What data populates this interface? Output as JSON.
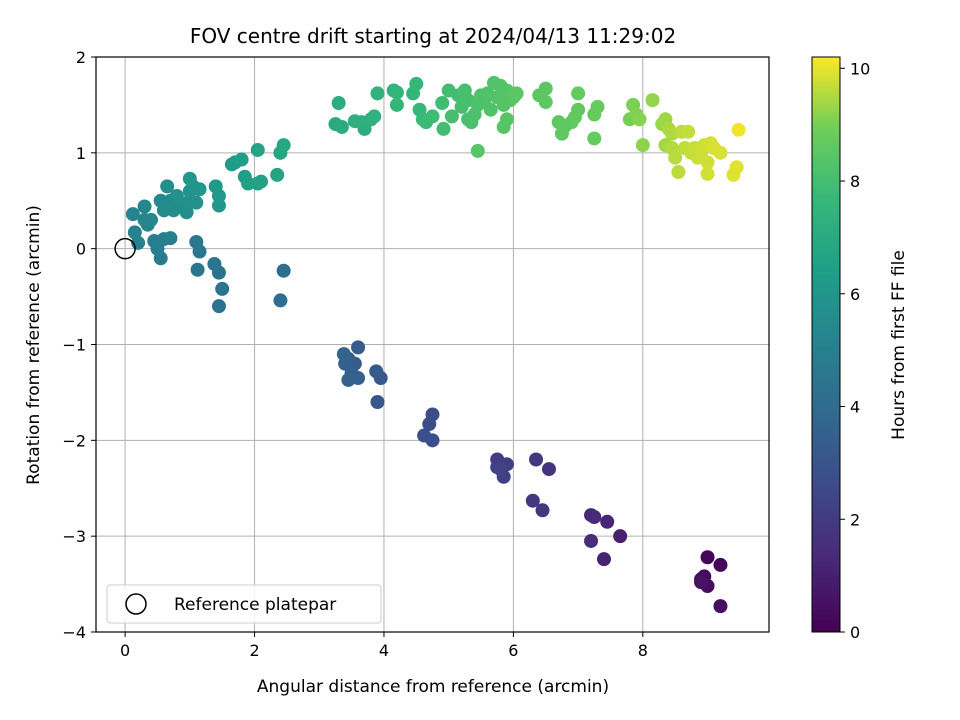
{
  "chart_data": {
    "type": "scatter",
    "title": "FOV centre drift starting at 2024/04/13 11:29:02",
    "xlabel": "Angular distance from reference (arcmin)",
    "ylabel": "Rotation from reference (arcmin)",
    "xlim": [
      -0.45,
      9.95
    ],
    "ylim": [
      -4,
      2
    ],
    "xticks": [
      0,
      2,
      4,
      6,
      8
    ],
    "yticks": [
      -4,
      -3,
      -2,
      -1,
      0,
      1,
      2
    ],
    "xtick_labels": [
      "0",
      "2",
      "4",
      "6",
      "8"
    ],
    "ytick_labels": [
      "−4",
      "−3",
      "−2",
      "−1",
      "0",
      "1",
      "2"
    ],
    "grid": true,
    "colormap": "viridis",
    "colorbar": {
      "label": "Hours from first FF file",
      "range": [
        0,
        10.2
      ],
      "ticks": [
        0,
        2,
        4,
        6,
        8,
        10
      ],
      "tick_labels": [
        "0",
        "2",
        "4",
        "6",
        "8",
        "10"
      ]
    },
    "reference": {
      "x": 0,
      "y": 0,
      "label": "Reference platepar"
    },
    "legend_position": "lower-left",
    "points": [
      {
        "x": 9.0,
        "y": -3.22,
        "h": 0.1
      },
      {
        "x": 9.2,
        "y": -3.3,
        "h": 0.2
      },
      {
        "x": 8.9,
        "y": -3.45,
        "h": 0.3
      },
      {
        "x": 8.95,
        "y": -3.42,
        "h": 0.35
      },
      {
        "x": 9.0,
        "y": -3.52,
        "h": 0.4
      },
      {
        "x": 9.2,
        "y": -3.73,
        "h": 0.5
      },
      {
        "x": 8.9,
        "y": -3.48,
        "h": 0.6
      },
      {
        "x": 7.65,
        "y": -3.0,
        "h": 1.0
      },
      {
        "x": 7.4,
        "y": -3.24,
        "h": 1.1
      },
      {
        "x": 7.45,
        "y": -2.85,
        "h": 1.2
      },
      {
        "x": 7.2,
        "y": -2.78,
        "h": 1.3
      },
      {
        "x": 7.25,
        "y": -2.8,
        "h": 1.4
      },
      {
        "x": 7.2,
        "y": -3.05,
        "h": 1.5
      },
      {
        "x": 6.55,
        "y": -2.3,
        "h": 1.7
      },
      {
        "x": 6.35,
        "y": -2.2,
        "h": 1.8
      },
      {
        "x": 6.45,
        "y": -2.73,
        "h": 1.85
      },
      {
        "x": 6.3,
        "y": -2.63,
        "h": 1.9
      },
      {
        "x": 5.75,
        "y": -2.2,
        "h": 2.1
      },
      {
        "x": 5.9,
        "y": -2.25,
        "h": 2.15
      },
      {
        "x": 5.85,
        "y": -2.38,
        "h": 2.2
      },
      {
        "x": 5.75,
        "y": -2.28,
        "h": 2.25
      },
      {
        "x": 5.8,
        "y": -2.3,
        "h": 2.3
      },
      {
        "x": 4.75,
        "y": -1.73,
        "h": 2.7
      },
      {
        "x": 4.7,
        "y": -1.83,
        "h": 2.75
      },
      {
        "x": 4.75,
        "y": -2.0,
        "h": 2.8
      },
      {
        "x": 4.62,
        "y": -1.95,
        "h": 2.85
      },
      {
        "x": 3.9,
        "y": -1.6,
        "h": 3.1
      },
      {
        "x": 3.95,
        "y": -1.35,
        "h": 3.2
      },
      {
        "x": 3.88,
        "y": -1.28,
        "h": 3.25
      },
      {
        "x": 3.6,
        "y": -1.03,
        "h": 3.3
      },
      {
        "x": 3.55,
        "y": -1.2,
        "h": 3.35
      },
      {
        "x": 3.45,
        "y": -1.15,
        "h": 3.4
      },
      {
        "x": 3.4,
        "y": -1.2,
        "h": 3.45
      },
      {
        "x": 3.5,
        "y": -1.3,
        "h": 3.5
      },
      {
        "x": 3.6,
        "y": -1.35,
        "h": 3.55
      },
      {
        "x": 3.45,
        "y": -1.37,
        "h": 3.6
      },
      {
        "x": 3.38,
        "y": -1.1,
        "h": 3.65
      },
      {
        "x": 2.45,
        "y": -0.23,
        "h": 4.0
      },
      {
        "x": 2.4,
        "y": -0.54,
        "h": 4.1
      },
      {
        "x": 1.45,
        "y": -0.6,
        "h": 4.3
      },
      {
        "x": 1.5,
        "y": -0.42,
        "h": 4.35
      },
      {
        "x": 1.45,
        "y": -0.25,
        "h": 4.4
      },
      {
        "x": 1.38,
        "y": -0.16,
        "h": 4.45
      },
      {
        "x": 1.12,
        "y": -0.22,
        "h": 4.5
      },
      {
        "x": 1.15,
        "y": -0.03,
        "h": 4.55
      },
      {
        "x": 1.1,
        "y": 0.07,
        "h": 4.6
      },
      {
        "x": 0.55,
        "y": -0.1,
        "h": 4.8
      },
      {
        "x": 0.5,
        "y": 0.0,
        "h": 4.85
      },
      {
        "x": 0.45,
        "y": 0.08,
        "h": 4.9
      },
      {
        "x": 0.6,
        "y": 0.1,
        "h": 4.95
      },
      {
        "x": 0.7,
        "y": 0.11,
        "h": 5.0
      },
      {
        "x": 0.2,
        "y": 0.06,
        "h": 5.05
      },
      {
        "x": 0.15,
        "y": 0.17,
        "h": 5.1
      },
      {
        "x": 0.35,
        "y": 0.25,
        "h": 5.15
      },
      {
        "x": 0.12,
        "y": 0.36,
        "h": 5.2
      },
      {
        "x": 0.3,
        "y": 0.3,
        "h": 5.25
      },
      {
        "x": 0.4,
        "y": 0.3,
        "h": 5.3
      },
      {
        "x": 0.3,
        "y": 0.44,
        "h": 5.35
      },
      {
        "x": 0.55,
        "y": 0.5,
        "h": 5.4
      },
      {
        "x": 0.6,
        "y": 0.4,
        "h": 5.45
      },
      {
        "x": 0.7,
        "y": 0.5,
        "h": 5.5
      },
      {
        "x": 0.75,
        "y": 0.4,
        "h": 5.55
      },
      {
        "x": 0.85,
        "y": 0.45,
        "h": 5.6
      },
      {
        "x": 0.95,
        "y": 0.38,
        "h": 5.65
      },
      {
        "x": 0.65,
        "y": 0.65,
        "h": 5.7
      },
      {
        "x": 0.8,
        "y": 0.55,
        "h": 5.75
      },
      {
        "x": 1.0,
        "y": 0.5,
        "h": 5.8
      },
      {
        "x": 1.1,
        "y": 0.48,
        "h": 5.85
      },
      {
        "x": 1.0,
        "y": 0.6,
        "h": 5.9
      },
      {
        "x": 1.05,
        "y": 0.65,
        "h": 5.95
      },
      {
        "x": 1.15,
        "y": 0.62,
        "h": 6.0
      },
      {
        "x": 1.0,
        "y": 0.73,
        "h": 6.05
      },
      {
        "x": 1.45,
        "y": 0.45,
        "h": 6.1
      },
      {
        "x": 1.4,
        "y": 0.65,
        "h": 6.15
      },
      {
        "x": 1.45,
        "y": 0.55,
        "h": 6.2
      },
      {
        "x": 1.65,
        "y": 0.88,
        "h": 6.3
      },
      {
        "x": 1.7,
        "y": 0.9,
        "h": 6.35
      },
      {
        "x": 1.8,
        "y": 0.93,
        "h": 6.4
      },
      {
        "x": 1.85,
        "y": 0.75,
        "h": 6.45
      },
      {
        "x": 1.9,
        "y": 0.68,
        "h": 6.5
      },
      {
        "x": 2.05,
        "y": 0.68,
        "h": 6.55
      },
      {
        "x": 2.1,
        "y": 0.7,
        "h": 6.6
      },
      {
        "x": 2.05,
        "y": 1.03,
        "h": 6.65
      },
      {
        "x": 2.35,
        "y": 0.77,
        "h": 6.7
      },
      {
        "x": 2.4,
        "y": 1.0,
        "h": 6.75
      },
      {
        "x": 2.45,
        "y": 1.08,
        "h": 6.8
      },
      {
        "x": 3.25,
        "y": 1.3,
        "h": 7.0
      },
      {
        "x": 3.35,
        "y": 1.27,
        "h": 7.05
      },
      {
        "x": 3.3,
        "y": 1.52,
        "h": 7.1
      },
      {
        "x": 3.7,
        "y": 1.25,
        "h": 7.15
      },
      {
        "x": 3.65,
        "y": 1.32,
        "h": 7.2
      },
      {
        "x": 3.55,
        "y": 1.33,
        "h": 7.25
      },
      {
        "x": 3.8,
        "y": 1.35,
        "h": 7.3
      },
      {
        "x": 3.85,
        "y": 1.38,
        "h": 7.35
      },
      {
        "x": 3.9,
        "y": 1.62,
        "h": 7.4
      },
      {
        "x": 4.15,
        "y": 1.65,
        "h": 7.45
      },
      {
        "x": 4.2,
        "y": 1.63,
        "h": 7.5
      },
      {
        "x": 4.2,
        "y": 1.5,
        "h": 7.55
      },
      {
        "x": 4.45,
        "y": 1.62,
        "h": 7.6
      },
      {
        "x": 4.5,
        "y": 1.72,
        "h": 7.65
      },
      {
        "x": 4.55,
        "y": 1.45,
        "h": 7.7
      },
      {
        "x": 4.6,
        "y": 1.35,
        "h": 7.75
      },
      {
        "x": 4.65,
        "y": 1.32,
        "h": 7.8
      },
      {
        "x": 4.75,
        "y": 1.38,
        "h": 7.85
      },
      {
        "x": 4.9,
        "y": 1.52,
        "h": 7.9
      },
      {
        "x": 4.92,
        "y": 1.25,
        "h": 7.95
      },
      {
        "x": 5.0,
        "y": 1.65,
        "h": 8.0
      },
      {
        "x": 5.05,
        "y": 1.38,
        "h": 8.02
      },
      {
        "x": 5.15,
        "y": 1.6,
        "h": 8.04
      },
      {
        "x": 5.2,
        "y": 1.48,
        "h": 8.06
      },
      {
        "x": 5.25,
        "y": 1.65,
        "h": 8.08
      },
      {
        "x": 5.3,
        "y": 1.55,
        "h": 8.1
      },
      {
        "x": 5.3,
        "y": 1.35,
        "h": 8.12
      },
      {
        "x": 5.35,
        "y": 1.32,
        "h": 8.14
      },
      {
        "x": 5.4,
        "y": 1.4,
        "h": 8.16
      },
      {
        "x": 5.45,
        "y": 1.5,
        "h": 8.18
      },
      {
        "x": 5.5,
        "y": 1.6,
        "h": 8.2
      },
      {
        "x": 5.55,
        "y": 1.55,
        "h": 8.22
      },
      {
        "x": 5.6,
        "y": 1.62,
        "h": 8.24
      },
      {
        "x": 5.65,
        "y": 1.45,
        "h": 8.26
      },
      {
        "x": 5.7,
        "y": 1.73,
        "h": 8.28
      },
      {
        "x": 5.75,
        "y": 1.58,
        "h": 8.3
      },
      {
        "x": 5.8,
        "y": 1.7,
        "h": 8.32
      },
      {
        "x": 5.85,
        "y": 1.5,
        "h": 8.34
      },
      {
        "x": 5.9,
        "y": 1.65,
        "h": 8.36
      },
      {
        "x": 5.95,
        "y": 1.55,
        "h": 8.38
      },
      {
        "x": 5.45,
        "y": 1.02,
        "h": 8.4
      },
      {
        "x": 5.85,
        "y": 1.27,
        "h": 8.42
      },
      {
        "x": 5.9,
        "y": 1.35,
        "h": 8.44
      },
      {
        "x": 6.0,
        "y": 1.58,
        "h": 8.46
      },
      {
        "x": 6.05,
        "y": 1.62,
        "h": 8.48
      },
      {
        "x": 6.4,
        "y": 1.6,
        "h": 8.5
      },
      {
        "x": 6.5,
        "y": 1.67,
        "h": 8.52
      },
      {
        "x": 6.5,
        "y": 1.53,
        "h": 8.54
      },
      {
        "x": 6.7,
        "y": 1.32,
        "h": 8.56
      },
      {
        "x": 6.8,
        "y": 1.28,
        "h": 8.58
      },
      {
        "x": 6.75,
        "y": 1.2,
        "h": 8.6
      },
      {
        "x": 6.9,
        "y": 1.32,
        "h": 8.62
      },
      {
        "x": 6.95,
        "y": 1.37,
        "h": 8.64
      },
      {
        "x": 7.0,
        "y": 1.45,
        "h": 8.66
      },
      {
        "x": 7.0,
        "y": 1.62,
        "h": 8.68
      },
      {
        "x": 7.25,
        "y": 1.15,
        "h": 8.7
      },
      {
        "x": 7.25,
        "y": 1.4,
        "h": 8.72
      },
      {
        "x": 7.3,
        "y": 1.48,
        "h": 8.74
      },
      {
        "x": 7.8,
        "y": 1.35,
        "h": 9.0
      },
      {
        "x": 7.85,
        "y": 1.5,
        "h": 9.05
      },
      {
        "x": 7.9,
        "y": 1.4,
        "h": 9.1
      },
      {
        "x": 7.95,
        "y": 1.35,
        "h": 9.15
      },
      {
        "x": 8.0,
        "y": 1.08,
        "h": 9.2
      },
      {
        "x": 8.15,
        "y": 1.55,
        "h": 9.25
      },
      {
        "x": 8.3,
        "y": 1.3,
        "h": 9.3
      },
      {
        "x": 8.35,
        "y": 1.35,
        "h": 9.35
      },
      {
        "x": 8.35,
        "y": 1.08,
        "h": 9.4
      },
      {
        "x": 8.4,
        "y": 1.25,
        "h": 9.45
      },
      {
        "x": 8.45,
        "y": 1.2,
        "h": 9.5
      },
      {
        "x": 8.45,
        "y": 1.05,
        "h": 9.55
      },
      {
        "x": 8.5,
        "y": 0.95,
        "h": 9.6
      },
      {
        "x": 8.55,
        "y": 0.8,
        "h": 9.62
      },
      {
        "x": 8.6,
        "y": 1.22,
        "h": 9.64
      },
      {
        "x": 8.65,
        "y": 1.05,
        "h": 9.66
      },
      {
        "x": 8.7,
        "y": 1.22,
        "h": 9.68
      },
      {
        "x": 8.75,
        "y": 1.0,
        "h": 9.7
      },
      {
        "x": 8.8,
        "y": 1.05,
        "h": 9.72
      },
      {
        "x": 8.85,
        "y": 0.95,
        "h": 9.74
      },
      {
        "x": 8.9,
        "y": 1.0,
        "h": 9.76
      },
      {
        "x": 8.95,
        "y": 1.08,
        "h": 9.78
      },
      {
        "x": 9.0,
        "y": 0.9,
        "h": 9.8
      },
      {
        "x": 9.0,
        "y": 0.78,
        "h": 9.82
      },
      {
        "x": 9.05,
        "y": 1.1,
        "h": 9.84
      },
      {
        "x": 9.1,
        "y": 1.05,
        "h": 9.86
      },
      {
        "x": 9.2,
        "y": 1.0,
        "h": 9.88
      },
      {
        "x": 9.4,
        "y": 0.77,
        "h": 9.92
      },
      {
        "x": 9.45,
        "y": 0.85,
        "h": 9.95
      },
      {
        "x": 9.48,
        "y": 1.24,
        "h": 10.1
      }
    ]
  }
}
